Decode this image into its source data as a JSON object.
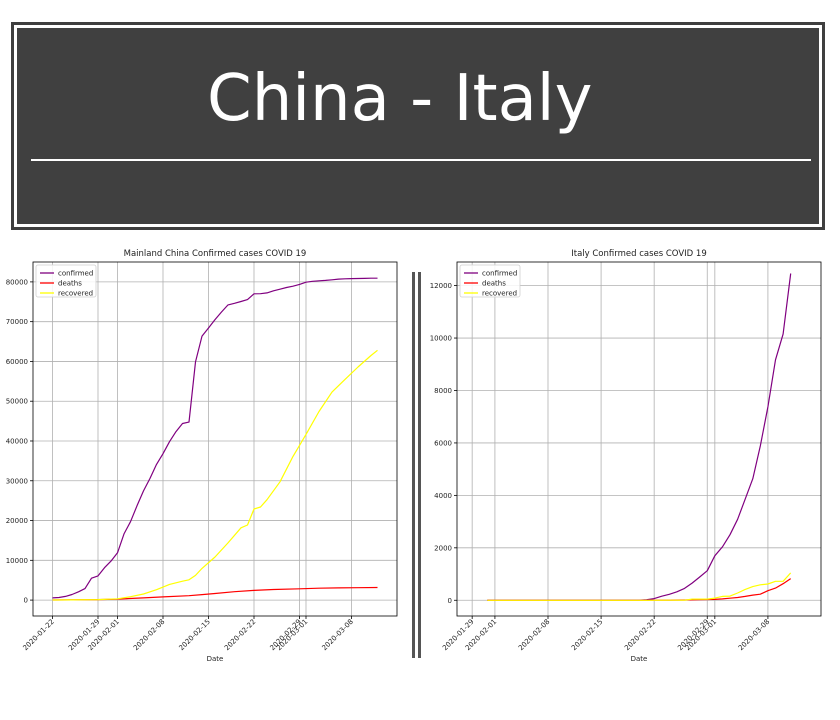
{
  "banner": {
    "title": "China - Italy"
  },
  "chart_data": [
    {
      "type": "line",
      "title": "Mainland China Confirmed cases COVID 19",
      "xlabel": "Date",
      "ylabel": "",
      "grid": true,
      "legend": "top-left",
      "xlim": [
        "2020-01-19",
        "2020-03-15"
      ],
      "ylim": [
        -4000,
        85000
      ],
      "x_ticks": [
        "2020-01-22",
        "2020-01-29",
        "2020-02-01",
        "2020-02-08",
        "2020-02-15",
        "2020-02-22",
        "2020-02-29",
        "2020-03-01",
        "2020-03-08"
      ],
      "y_ticks": [
        0,
        10000,
        20000,
        30000,
        40000,
        50000,
        60000,
        70000,
        80000
      ],
      "series": [
        {
          "name": "confirmed",
          "color": "#800080",
          "points": [
            [
              "2020-01-22",
              548
            ],
            [
              "2020-01-23",
              643
            ],
            [
              "2020-01-24",
              920
            ],
            [
              "2020-01-25",
              1406
            ],
            [
              "2020-01-26",
              2075
            ],
            [
              "2020-01-27",
              2877
            ],
            [
              "2020-01-28",
              5509
            ],
            [
              "2020-01-29",
              6087
            ],
            [
              "2020-01-30",
              8141
            ],
            [
              "2020-01-31",
              9802
            ],
            [
              "2020-02-01",
              11891
            ],
            [
              "2020-02-02",
              16630
            ],
            [
              "2020-02-03",
              19716
            ],
            [
              "2020-02-04",
              23707
            ],
            [
              "2020-02-05",
              27440
            ],
            [
              "2020-02-06",
              30587
            ],
            [
              "2020-02-07",
              34110
            ],
            [
              "2020-02-08",
              36814
            ],
            [
              "2020-02-09",
              39829
            ],
            [
              "2020-02-10",
              42354
            ],
            [
              "2020-02-11",
              44386
            ],
            [
              "2020-02-12",
              44759
            ],
            [
              "2020-02-13",
              59895
            ],
            [
              "2020-02-14",
              66358
            ],
            [
              "2020-02-15",
              68413
            ],
            [
              "2020-02-16",
              70513
            ],
            [
              "2020-02-17",
              72434
            ],
            [
              "2020-02-18",
              74211
            ],
            [
              "2020-02-19",
              74619
            ],
            [
              "2020-02-20",
              75077
            ],
            [
              "2020-02-21",
              75550
            ],
            [
              "2020-02-22",
              77001
            ],
            [
              "2020-02-23",
              77022
            ],
            [
              "2020-02-24",
              77241
            ],
            [
              "2020-02-25",
              77754
            ],
            [
              "2020-02-26",
              78166
            ],
            [
              "2020-02-27",
              78600
            ],
            [
              "2020-02-28",
              78928
            ],
            [
              "2020-02-29",
              79356
            ],
            [
              "2020-03-01",
              79932
            ],
            [
              "2020-03-02",
              80136
            ],
            [
              "2020-03-03",
              80261
            ],
            [
              "2020-03-04",
              80386
            ],
            [
              "2020-03-05",
              80537
            ],
            [
              "2020-03-06",
              80690
            ],
            [
              "2020-03-07",
              80770
            ],
            [
              "2020-03-08",
              80823
            ],
            [
              "2020-03-09",
              80860
            ],
            [
              "2020-03-10",
              80887
            ],
            [
              "2020-03-11",
              80921
            ],
            [
              "2020-03-12",
              80932
            ]
          ]
        },
        {
          "name": "deaths",
          "color": "#ff0000",
          "points": [
            [
              "2020-01-22",
              17
            ],
            [
              "2020-01-25",
              42
            ],
            [
              "2020-01-29",
              132
            ],
            [
              "2020-02-01",
              259
            ],
            [
              "2020-02-05",
              563
            ],
            [
              "2020-02-08",
              811
            ],
            [
              "2020-02-12",
              1113
            ],
            [
              "2020-02-14",
              1381
            ],
            [
              "2020-02-16",
              1666
            ],
            [
              "2020-02-19",
              2118
            ],
            [
              "2020-02-22",
              2442
            ],
            [
              "2020-02-25",
              2663
            ],
            [
              "2020-02-29",
              2835
            ],
            [
              "2020-03-03",
              2980
            ],
            [
              "2020-03-06",
              3073
            ],
            [
              "2020-03-09",
              3123
            ],
            [
              "2020-03-12",
              3172
            ]
          ]
        },
        {
          "name": "recovered",
          "color": "#ffff00",
          "points": [
            [
              "2020-01-22",
              28
            ],
            [
              "2020-01-25",
              39
            ],
            [
              "2020-01-29",
              125
            ],
            [
              "2020-02-01",
              328
            ],
            [
              "2020-02-03",
              852
            ],
            [
              "2020-02-05",
              1540
            ],
            [
              "2020-02-07",
              2616
            ],
            [
              "2020-02-09",
              3946
            ],
            [
              "2020-02-11",
              4740
            ],
            [
              "2020-02-12",
              5112
            ],
            [
              "2020-02-13",
              6213
            ],
            [
              "2020-02-14",
              7973
            ],
            [
              "2020-02-16",
              10844
            ],
            [
              "2020-02-18",
              14376
            ],
            [
              "2020-02-20",
              18177
            ],
            [
              "2020-02-21",
              18890
            ],
            [
              "2020-02-22",
              22907
            ],
            [
              "2020-02-23",
              23394
            ],
            [
              "2020-02-24",
              25227
            ],
            [
              "2020-02-26",
              29745
            ],
            [
              "2020-02-28",
              36117
            ],
            [
              "2020-03-01",
              41650
            ],
            [
              "2020-03-03",
              47405
            ],
            [
              "2020-03-05",
              52292
            ],
            [
              "2020-03-07",
              55478
            ],
            [
              "2020-03-09",
              58600
            ],
            [
              "2020-03-11",
              61500
            ],
            [
              "2020-03-12",
              62793
            ]
          ]
        }
      ]
    },
    {
      "type": "line",
      "title": "Italy Confirmed cases COVID 19",
      "xlabel": "Date",
      "ylabel": "",
      "grid": true,
      "legend": "top-left",
      "xlim": [
        "2020-01-27",
        "2020-03-15"
      ],
      "ylim": [
        -600,
        12900
      ],
      "x_ticks": [
        "2020-01-29",
        "2020-02-01",
        "2020-02-08",
        "2020-02-15",
        "2020-02-22",
        "2020-02-29",
        "2020-03-01",
        "2020-03-08"
      ],
      "y_ticks": [
        0,
        2000,
        4000,
        6000,
        8000,
        10000,
        12000
      ],
      "series": [
        {
          "name": "confirmed",
          "color": "#800080",
          "points": [
            [
              "2020-01-31",
              2
            ],
            [
              "2020-02-06",
              3
            ],
            [
              "2020-02-20",
              3
            ],
            [
              "2020-02-21",
              20
            ],
            [
              "2020-02-22",
              62
            ],
            [
              "2020-02-23",
              155
            ],
            [
              "2020-02-24",
              229
            ],
            [
              "2020-02-25",
              322
            ],
            [
              "2020-02-26",
              453
            ],
            [
              "2020-02-27",
              655
            ],
            [
              "2020-02-28",
              888
            ],
            [
              "2020-02-29",
              1128
            ],
            [
              "2020-03-01",
              1694
            ],
            [
              "2020-03-02",
              2036
            ],
            [
              "2020-03-03",
              2502
            ],
            [
              "2020-03-04",
              3089
            ],
            [
              "2020-03-05",
              3858
            ],
            [
              "2020-03-06",
              4636
            ],
            [
              "2020-03-07",
              5883
            ],
            [
              "2020-03-08",
              7375
            ],
            [
              "2020-03-09",
              9172
            ],
            [
              "2020-03-10",
              10149
            ],
            [
              "2020-03-11",
              12462
            ]
          ]
        },
        {
          "name": "deaths",
          "color": "#ff0000",
          "points": [
            [
              "2020-01-31",
              0
            ],
            [
              "2020-02-20",
              0
            ],
            [
              "2020-02-22",
              2
            ],
            [
              "2020-02-24",
              7
            ],
            [
              "2020-02-26",
              12
            ],
            [
              "2020-02-28",
              21
            ],
            [
              "2020-02-29",
              29
            ],
            [
              "2020-03-01",
              34
            ],
            [
              "2020-03-02",
              52
            ],
            [
              "2020-03-03",
              79
            ],
            [
              "2020-03-04",
              107
            ],
            [
              "2020-03-05",
              148
            ],
            [
              "2020-03-06",
              197
            ],
            [
              "2020-03-07",
              233
            ],
            [
              "2020-03-08",
              366
            ],
            [
              "2020-03-09",
              463
            ],
            [
              "2020-03-10",
              631
            ],
            [
              "2020-03-11",
              827
            ]
          ]
        },
        {
          "name": "recovered",
          "color": "#ffff00",
          "points": [
            [
              "2020-01-31",
              0
            ],
            [
              "2020-02-21",
              0
            ],
            [
              "2020-02-24",
              1
            ],
            [
              "2020-02-25",
              1
            ],
            [
              "2020-02-26",
              3
            ],
            [
              "2020-02-27",
              45
            ],
            [
              "2020-02-28",
              46
            ],
            [
              "2020-02-29",
              46
            ],
            [
              "2020-03-01",
              83
            ],
            [
              "2020-03-02",
              149
            ],
            [
              "2020-03-03",
              160
            ],
            [
              "2020-03-04",
              276
            ],
            [
              "2020-03-05",
              414
            ],
            [
              "2020-03-06",
              523
            ],
            [
              "2020-03-07",
              589
            ],
            [
              "2020-03-08",
              622
            ],
            [
              "2020-03-09",
              724
            ],
            [
              "2020-03-10",
              724
            ],
            [
              "2020-03-11",
              1045
            ]
          ]
        }
      ]
    }
  ]
}
